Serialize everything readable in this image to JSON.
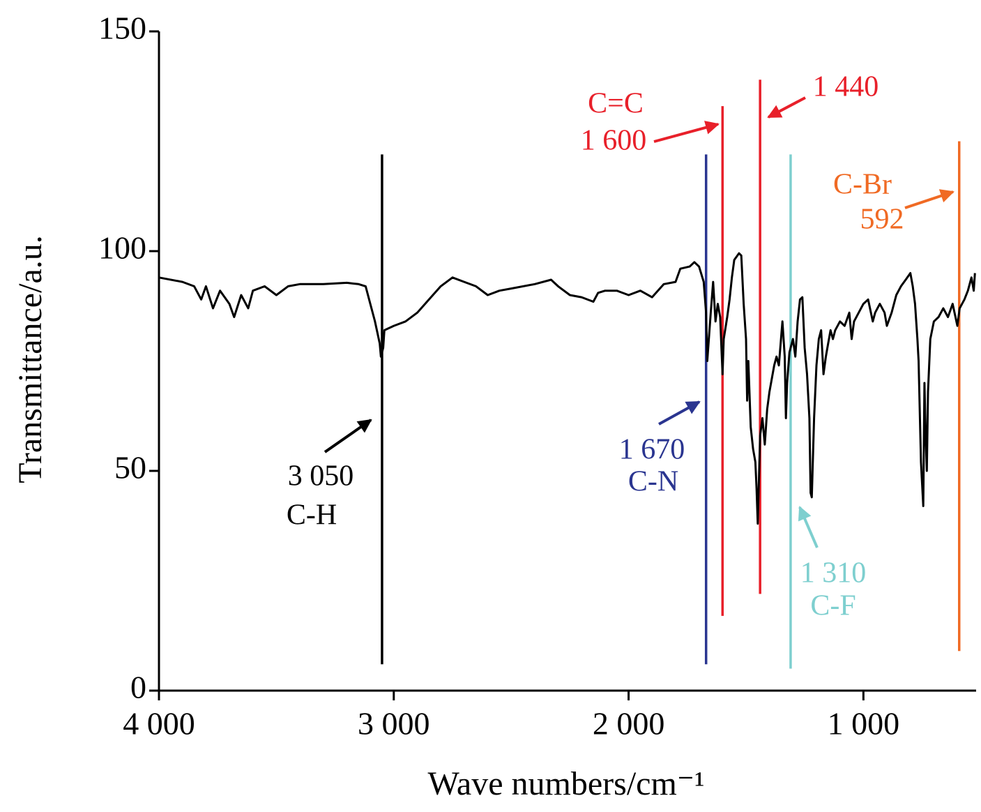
{
  "chart_data": {
    "type": "line",
    "x_label": "Wave numbers/cm⁻¹",
    "y_label": "Transmittance/a.u.",
    "xlim": [
      4000,
      520
    ],
    "ylim": [
      0,
      150
    ],
    "xticks": [
      {
        "value": 4000,
        "label": "4 000"
      },
      {
        "value": 3000,
        "label": "3 000"
      },
      {
        "value": 2000,
        "label": "2 000"
      },
      {
        "value": 1000,
        "label": "1 000"
      }
    ],
    "yticks": [
      0,
      50,
      100,
      150
    ],
    "x": [
      4000,
      3900,
      3850,
      3820,
      3800,
      3770,
      3740,
      3700,
      3680,
      3650,
      3620,
      3600,
      3550,
      3500,
      3450,
      3400,
      3300,
      3200,
      3150,
      3120,
      3100,
      3080,
      3060,
      3055,
      3045,
      3040,
      3000,
      2950,
      2900,
      2850,
      2800,
      2750,
      2700,
      2650,
      2600,
      2550,
      2500,
      2400,
      2330,
      2300,
      2250,
      2200,
      2150,
      2130,
      2100,
      2050,
      2000,
      1950,
      1900,
      1850,
      1800,
      1780,
      1740,
      1720,
      1700,
      1680,
      1670,
      1665,
      1650,
      1640,
      1630,
      1620,
      1610,
      1600,
      1595,
      1580,
      1570,
      1560,
      1550,
      1530,
      1520,
      1510,
      1500,
      1495,
      1490,
      1480,
      1470,
      1460,
      1455,
      1450,
      1445,
      1440,
      1430,
      1420,
      1410,
      1400,
      1380,
      1370,
      1360,
      1345,
      1335,
      1330,
      1325,
      1315,
      1300,
      1290,
      1280,
      1270,
      1260,
      1250,
      1240,
      1230,
      1225,
      1220,
      1210,
      1200,
      1190,
      1180,
      1170,
      1160,
      1150,
      1140,
      1130,
      1120,
      1100,
      1080,
      1060,
      1050,
      1040,
      1020,
      1000,
      980,
      960,
      950,
      930,
      910,
      900,
      880,
      860,
      840,
      820,
      800,
      790,
      780,
      770,
      765,
      755,
      745,
      740,
      735,
      730,
      725,
      715,
      700,
      680,
      660,
      640,
      620,
      600,
      590,
      570,
      555,
      540,
      530,
      525
    ],
    "series": [
      {
        "name": "spectrum",
        "color": "#000000",
        "values": [
          94,
          93,
          92,
          89,
          92,
          87,
          91,
          88,
          85,
          90,
          87,
          91,
          92,
          90,
          92,
          92.5,
          92.5,
          92.8,
          92.5,
          92,
          88,
          84,
          79,
          76,
          78,
          82,
          83,
          84,
          86,
          89,
          92,
          94,
          93,
          92,
          90,
          91,
          91.5,
          92.5,
          93.5,
          92,
          90,
          89.5,
          88.5,
          90.5,
          91,
          91,
          90,
          91,
          89.5,
          92.5,
          93,
          96,
          96.5,
          97.5,
          96.5,
          93,
          86,
          75,
          86,
          93,
          84,
          88,
          85,
          72,
          80,
          85,
          89,
          94,
          98,
          99.5,
          99,
          88,
          80,
          66,
          75,
          60,
          55,
          52,
          46,
          38,
          48,
          58,
          62,
          56,
          64,
          68,
          74,
          76,
          74,
          84,
          76,
          62,
          70,
          77,
          80,
          76,
          84,
          89,
          89.5,
          78,
          72,
          62,
          45,
          44,
          62,
          74,
          80,
          82,
          72,
          76,
          79,
          82,
          80,
          82,
          84,
          83,
          86,
          80,
          84,
          86,
          88,
          89,
          84,
          86,
          88,
          86,
          83,
          86,
          90,
          92,
          93.5,
          95,
          92,
          88,
          80,
          75,
          52,
          42,
          70,
          58,
          50,
          68,
          80,
          84,
          85,
          87,
          85,
          88,
          83,
          87,
          89,
          91,
          94,
          91,
          95
        ]
      }
    ],
    "annotations": [
      {
        "label": "3 050",
        "group": "C-H",
        "position": 3050,
        "color": "#000000",
        "top": 122,
        "bottom": 6
      },
      {
        "label": "1 670",
        "group": "C-N",
        "position": 1670,
        "color": "#2a3590",
        "top": 122,
        "bottom": 6
      },
      {
        "label": "1 600",
        "group": "C=C",
        "position": 1600,
        "color": "#e8202a",
        "top": 133,
        "bottom": 17
      },
      {
        "label": "1 440",
        "position": 1440,
        "color": "#e8202a",
        "top": 139,
        "bottom": 22
      },
      {
        "label": "1 310",
        "group": "C-F",
        "position": 1310,
        "color": "#7ecfcf",
        "top": 122,
        "bottom": 5
      },
      {
        "label": "592",
        "group": "C-Br",
        "position": 592,
        "color": "#f06a24",
        "top": 125,
        "bottom": 9
      }
    ]
  }
}
